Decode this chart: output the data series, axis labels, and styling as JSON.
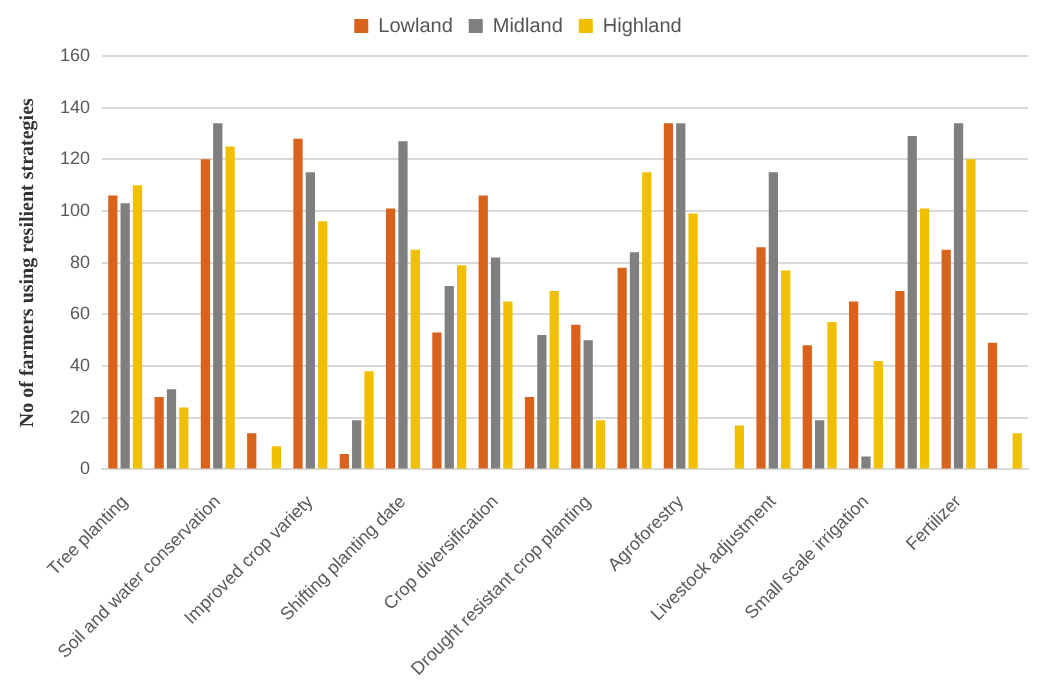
{
  "chart_data": {
    "type": "bar",
    "ylabel": "No of farmers using resilient strategies",
    "categories": [
      "Tree planting",
      null,
      "Soil and water conservation",
      null,
      "Improved crop variety",
      null,
      "Shifting planting date",
      null,
      "Crop diversification",
      null,
      "Drought resistant crop planting",
      null,
      "Agroforestry",
      null,
      "Livestock adjustment",
      null,
      "Small scale irrigation",
      null,
      "Fertilizer",
      null
    ],
    "series": [
      {
        "name": "Lowland",
        "color": "#d9621c",
        "values": [
          106,
          28,
          120,
          14,
          128,
          6,
          101,
          53,
          106,
          28,
          56,
          78,
          134,
          null,
          86,
          48,
          65,
          69,
          85,
          49
        ]
      },
      {
        "name": "Midland",
        "color": "#7f7f7f",
        "values": [
          103,
          31,
          134,
          null,
          115,
          19,
          127,
          71,
          82,
          52,
          50,
          84,
          134,
          null,
          115,
          19,
          5,
          129,
          134,
          null
        ]
      },
      {
        "name": "Highland",
        "color": "#f0c000",
        "values": [
          110,
          24,
          125,
          9,
          96,
          38,
          85,
          79,
          65,
          69,
          19,
          115,
          99,
          17,
          77,
          57,
          42,
          101,
          120,
          14
        ]
      }
    ],
    "ylim": [
      0,
      160
    ],
    "yticks": [
      0,
      20,
      40,
      60,
      80,
      100,
      120,
      140,
      160
    ],
    "grid": "y",
    "legend": "top"
  }
}
